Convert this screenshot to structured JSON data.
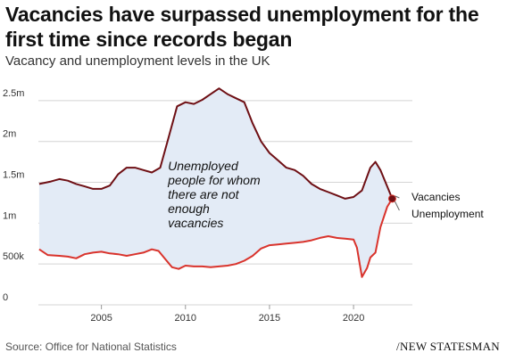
{
  "header": {
    "title": "Vacancies have surpassed unemployment for the first time since records began",
    "subtitle": "Vacancy and unemployment levels in the UK"
  },
  "footer": {
    "source": "Source: Office for National Statistics",
    "publisher": "NEW STATESMAN"
  },
  "colors": {
    "vacancies": "#6e0f14",
    "unemployment": "#d9332c",
    "fill": "#e3ebf6",
    "grid": "#d4d4d4"
  },
  "chart_data": {
    "type": "line",
    "title": "Vacancies have surpassed unemployment for the first time since records began",
    "subtitle": "Vacancy and unemployment levels in the UK",
    "xlabel": "",
    "ylabel": "",
    "xlim": [
      2001.25,
      2023.5
    ],
    "ylim": [
      0,
      2750000
    ],
    "x_ticks": [
      2005,
      2010,
      2015,
      2020
    ],
    "y_ticks": [
      {
        "value": 0,
        "label": "0"
      },
      {
        "value": 500000,
        "label": "500k"
      },
      {
        "value": 1000000,
        "label": "1m"
      },
      {
        "value": 1500000,
        "label": "1.5m"
      },
      {
        "value": 2000000,
        "label": "2m"
      },
      {
        "value": 2500000,
        "label": "2.5m"
      }
    ],
    "grid": true,
    "legend": "end-of-line labels",
    "annotation": {
      "lines": [
        "Unemployed",
        "people for whom",
        "there are not",
        "enough",
        "vacancies"
      ],
      "x": 2009.7,
      "y": 1450000
    },
    "series": [
      {
        "name": "Unemployment",
        "points": [
          [
            2001.3,
            1480000
          ],
          [
            2002.0,
            1510000
          ],
          [
            2002.5,
            1540000
          ],
          [
            2003.0,
            1520000
          ],
          [
            2003.5,
            1480000
          ],
          [
            2004.0,
            1450000
          ],
          [
            2004.5,
            1420000
          ],
          [
            2005.0,
            1420000
          ],
          [
            2005.5,
            1460000
          ],
          [
            2006.0,
            1600000
          ],
          [
            2006.5,
            1680000
          ],
          [
            2007.0,
            1680000
          ],
          [
            2007.5,
            1650000
          ],
          [
            2008.0,
            1620000
          ],
          [
            2008.5,
            1680000
          ],
          [
            2009.0,
            2050000
          ],
          [
            2009.5,
            2430000
          ],
          [
            2010.0,
            2480000
          ],
          [
            2010.5,
            2460000
          ],
          [
            2011.0,
            2510000
          ],
          [
            2011.5,
            2580000
          ],
          [
            2012.0,
            2650000
          ],
          [
            2012.5,
            2580000
          ],
          [
            2013.0,
            2530000
          ],
          [
            2013.5,
            2480000
          ],
          [
            2014.0,
            2220000
          ],
          [
            2014.5,
            2000000
          ],
          [
            2015.0,
            1860000
          ],
          [
            2015.5,
            1770000
          ],
          [
            2016.0,
            1680000
          ],
          [
            2016.5,
            1650000
          ],
          [
            2017.0,
            1580000
          ],
          [
            2017.5,
            1480000
          ],
          [
            2018.0,
            1420000
          ],
          [
            2018.5,
            1380000
          ],
          [
            2019.0,
            1340000
          ],
          [
            2019.5,
            1300000
          ],
          [
            2020.0,
            1320000
          ],
          [
            2020.5,
            1400000
          ],
          [
            2021.0,
            1680000
          ],
          [
            2021.3,
            1750000
          ],
          [
            2021.6,
            1650000
          ],
          [
            2022.0,
            1450000
          ],
          [
            2022.3,
            1300000
          ]
        ],
        "end_label": "Unemployment"
      },
      {
        "name": "Vacancies",
        "points": [
          [
            2001.3,
            680000
          ],
          [
            2001.8,
            610000
          ],
          [
            2002.5,
            600000
          ],
          [
            2003.0,
            590000
          ],
          [
            2003.5,
            570000
          ],
          [
            2004.0,
            620000
          ],
          [
            2004.5,
            640000
          ],
          [
            2005.0,
            650000
          ],
          [
            2005.5,
            630000
          ],
          [
            2006.0,
            620000
          ],
          [
            2006.5,
            600000
          ],
          [
            2007.0,
            620000
          ],
          [
            2007.5,
            640000
          ],
          [
            2008.0,
            680000
          ],
          [
            2008.4,
            660000
          ],
          [
            2008.8,
            560000
          ],
          [
            2009.2,
            460000
          ],
          [
            2009.6,
            440000
          ],
          [
            2010.0,
            480000
          ],
          [
            2010.5,
            470000
          ],
          [
            2011.0,
            470000
          ],
          [
            2011.5,
            460000
          ],
          [
            2012.0,
            470000
          ],
          [
            2012.5,
            480000
          ],
          [
            2013.0,
            500000
          ],
          [
            2013.5,
            540000
          ],
          [
            2014.0,
            600000
          ],
          [
            2014.5,
            690000
          ],
          [
            2015.0,
            730000
          ],
          [
            2015.5,
            740000
          ],
          [
            2016.0,
            750000
          ],
          [
            2016.5,
            760000
          ],
          [
            2017.0,
            770000
          ],
          [
            2017.5,
            790000
          ],
          [
            2018.0,
            820000
          ],
          [
            2018.5,
            840000
          ],
          [
            2019.0,
            820000
          ],
          [
            2019.5,
            810000
          ],
          [
            2020.0,
            800000
          ],
          [
            2020.2,
            700000
          ],
          [
            2020.5,
            340000
          ],
          [
            2020.8,
            450000
          ],
          [
            2021.0,
            580000
          ],
          [
            2021.3,
            640000
          ],
          [
            2021.6,
            950000
          ],
          [
            2022.0,
            1200000
          ],
          [
            2022.3,
            1300000
          ]
        ],
        "end_label": "Vacancies"
      }
    ]
  }
}
